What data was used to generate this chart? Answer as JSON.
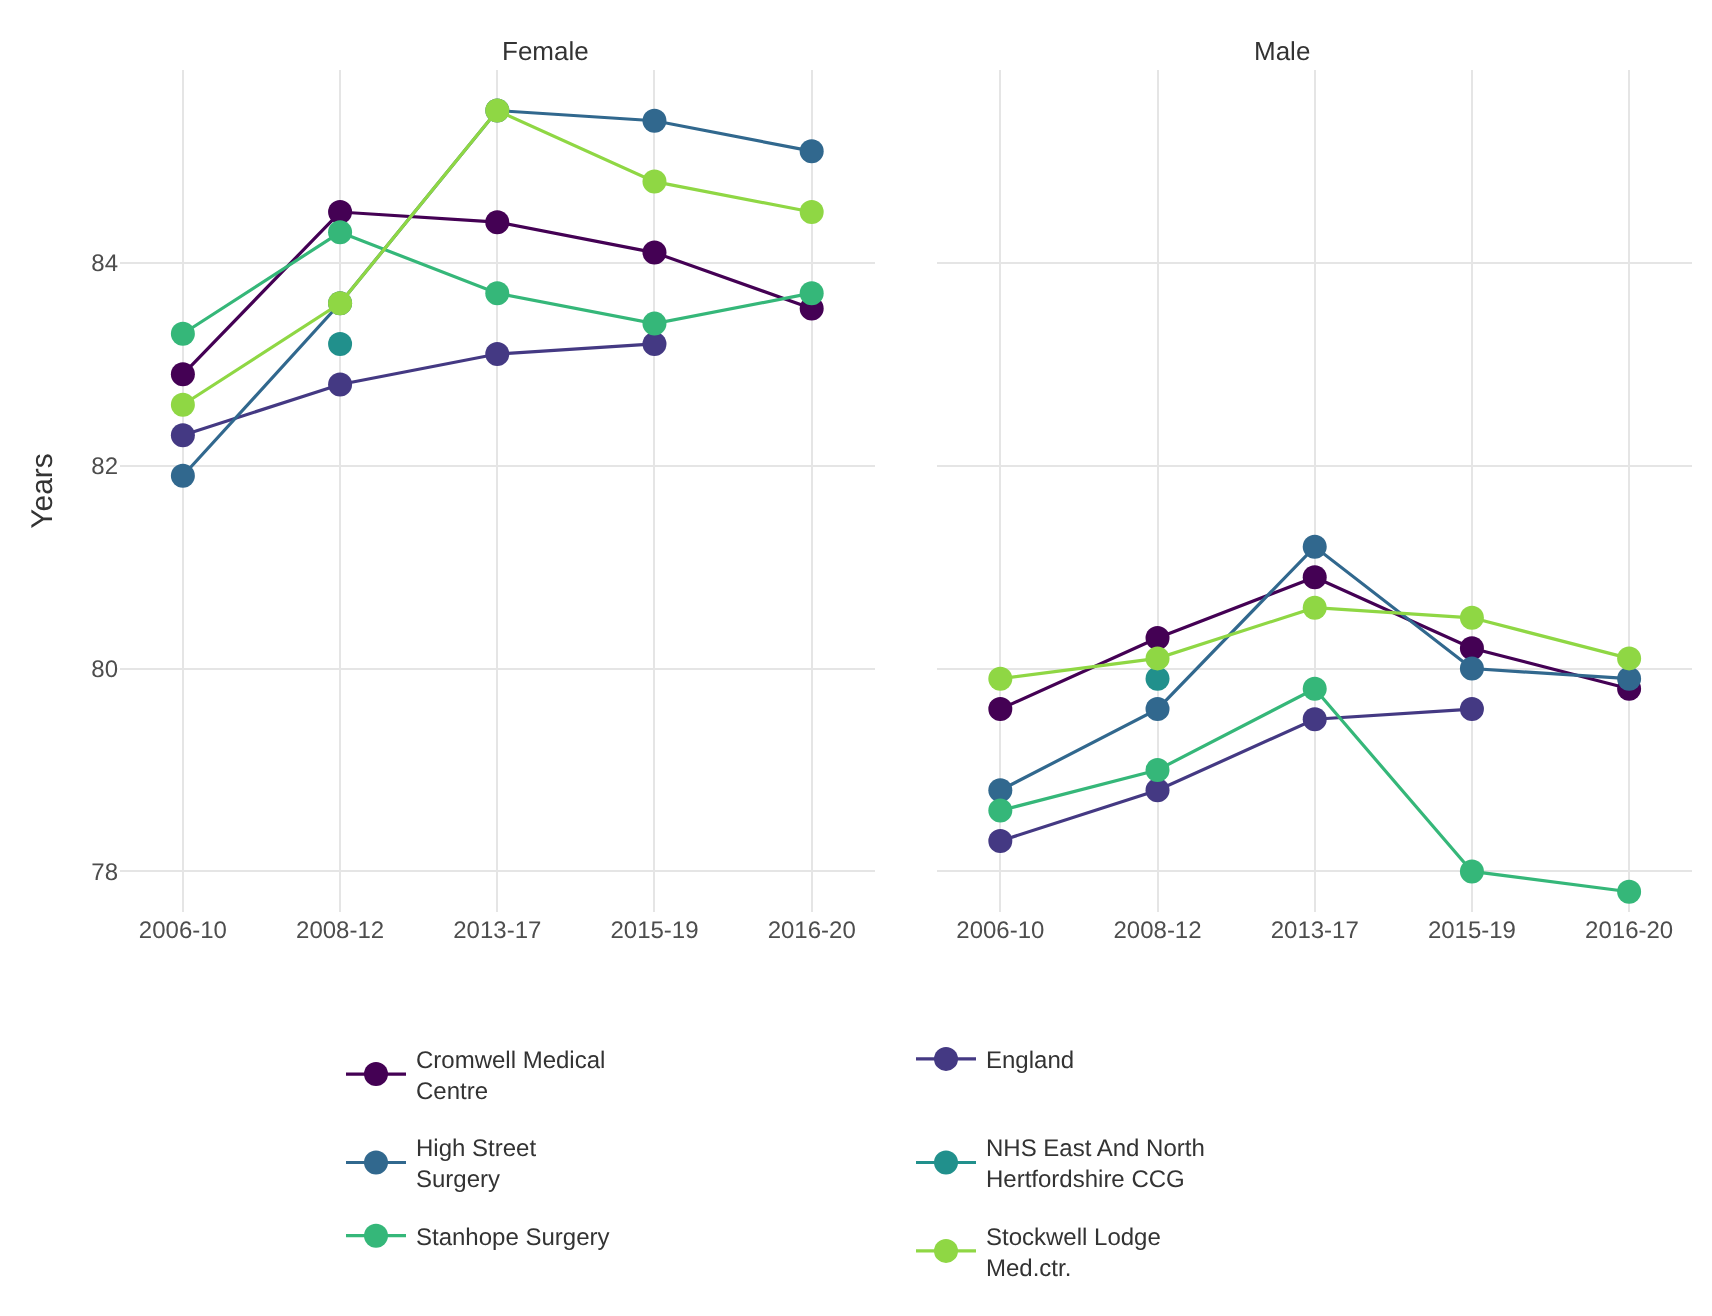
{
  "chart_data": [
    {
      "type": "line",
      "title": "Female",
      "ylabel": "Years",
      "categories": [
        "2006-10",
        "2008-12",
        "2013-17",
        "2015-19",
        "2016-20"
      ],
      "ylim": [
        77.6,
        85.9
      ],
      "yticks": [
        78,
        80,
        82,
        84
      ],
      "grid": true,
      "legend": "bottom",
      "marker": "circle",
      "line_style": "solid",
      "series": [
        {
          "name": "Cromwell Medical Centre",
          "color": "#440154",
          "values": [
            82.9,
            84.5,
            84.4,
            84.1,
            83.55
          ]
        },
        {
          "name": "England",
          "color": "#443983",
          "values": [
            82.3,
            82.8,
            83.1,
            83.2,
            null
          ]
        },
        {
          "name": "High Street Surgery",
          "color": "#31688e",
          "values": [
            81.9,
            83.6,
            85.5,
            85.4,
            85.1
          ]
        },
        {
          "name": "NHS East And North Hertfordshire CCG",
          "color": "#21908c",
          "values": [
            null,
            83.2,
            null,
            null,
            null
          ]
        },
        {
          "name": "Stanhope Surgery",
          "color": "#35b779",
          "values": [
            83.3,
            84.3,
            83.7,
            83.4,
            83.7
          ]
        },
        {
          "name": "Stockwell Lodge Med.ctr.",
          "color": "#8fd744",
          "values": [
            82.6,
            83.6,
            85.5,
            84.8,
            84.5
          ]
        }
      ]
    },
    {
      "type": "line",
      "title": "Male",
      "categories": [
        "2006-10",
        "2008-12",
        "2013-17",
        "2015-19",
        "2016-20"
      ],
      "ylim": [
        77.6,
        85.9
      ],
      "yticks": [
        78,
        80,
        82,
        84
      ],
      "grid": true,
      "legend": "bottom",
      "marker": "circle",
      "line_style": "solid",
      "tick_labels": "x",
      "series": [
        {
          "name": "Cromwell Medical Centre",
          "color": "#440154",
          "values": [
            79.6,
            80.3,
            80.9,
            80.2,
            79.8
          ]
        },
        {
          "name": "England",
          "color": "#443983",
          "values": [
            78.3,
            78.8,
            79.5,
            79.6,
            null
          ]
        },
        {
          "name": "High Street Surgery",
          "color": "#31688e",
          "values": [
            78.8,
            79.6,
            81.2,
            80.0,
            79.9
          ]
        },
        {
          "name": "NHS East And North Hertfordshire CCG",
          "color": "#21908c",
          "values": [
            null,
            79.9,
            null,
            null,
            null
          ]
        },
        {
          "name": "Stanhope Surgery",
          "color": "#35b779",
          "values": [
            78.6,
            79.0,
            79.8,
            78.0,
            77.8
          ]
        },
        {
          "name": "Stockwell Lodge Med.ctr.",
          "color": "#8fd744",
          "values": [
            79.9,
            80.1,
            80.6,
            80.5,
            80.1
          ]
        }
      ]
    }
  ]
}
